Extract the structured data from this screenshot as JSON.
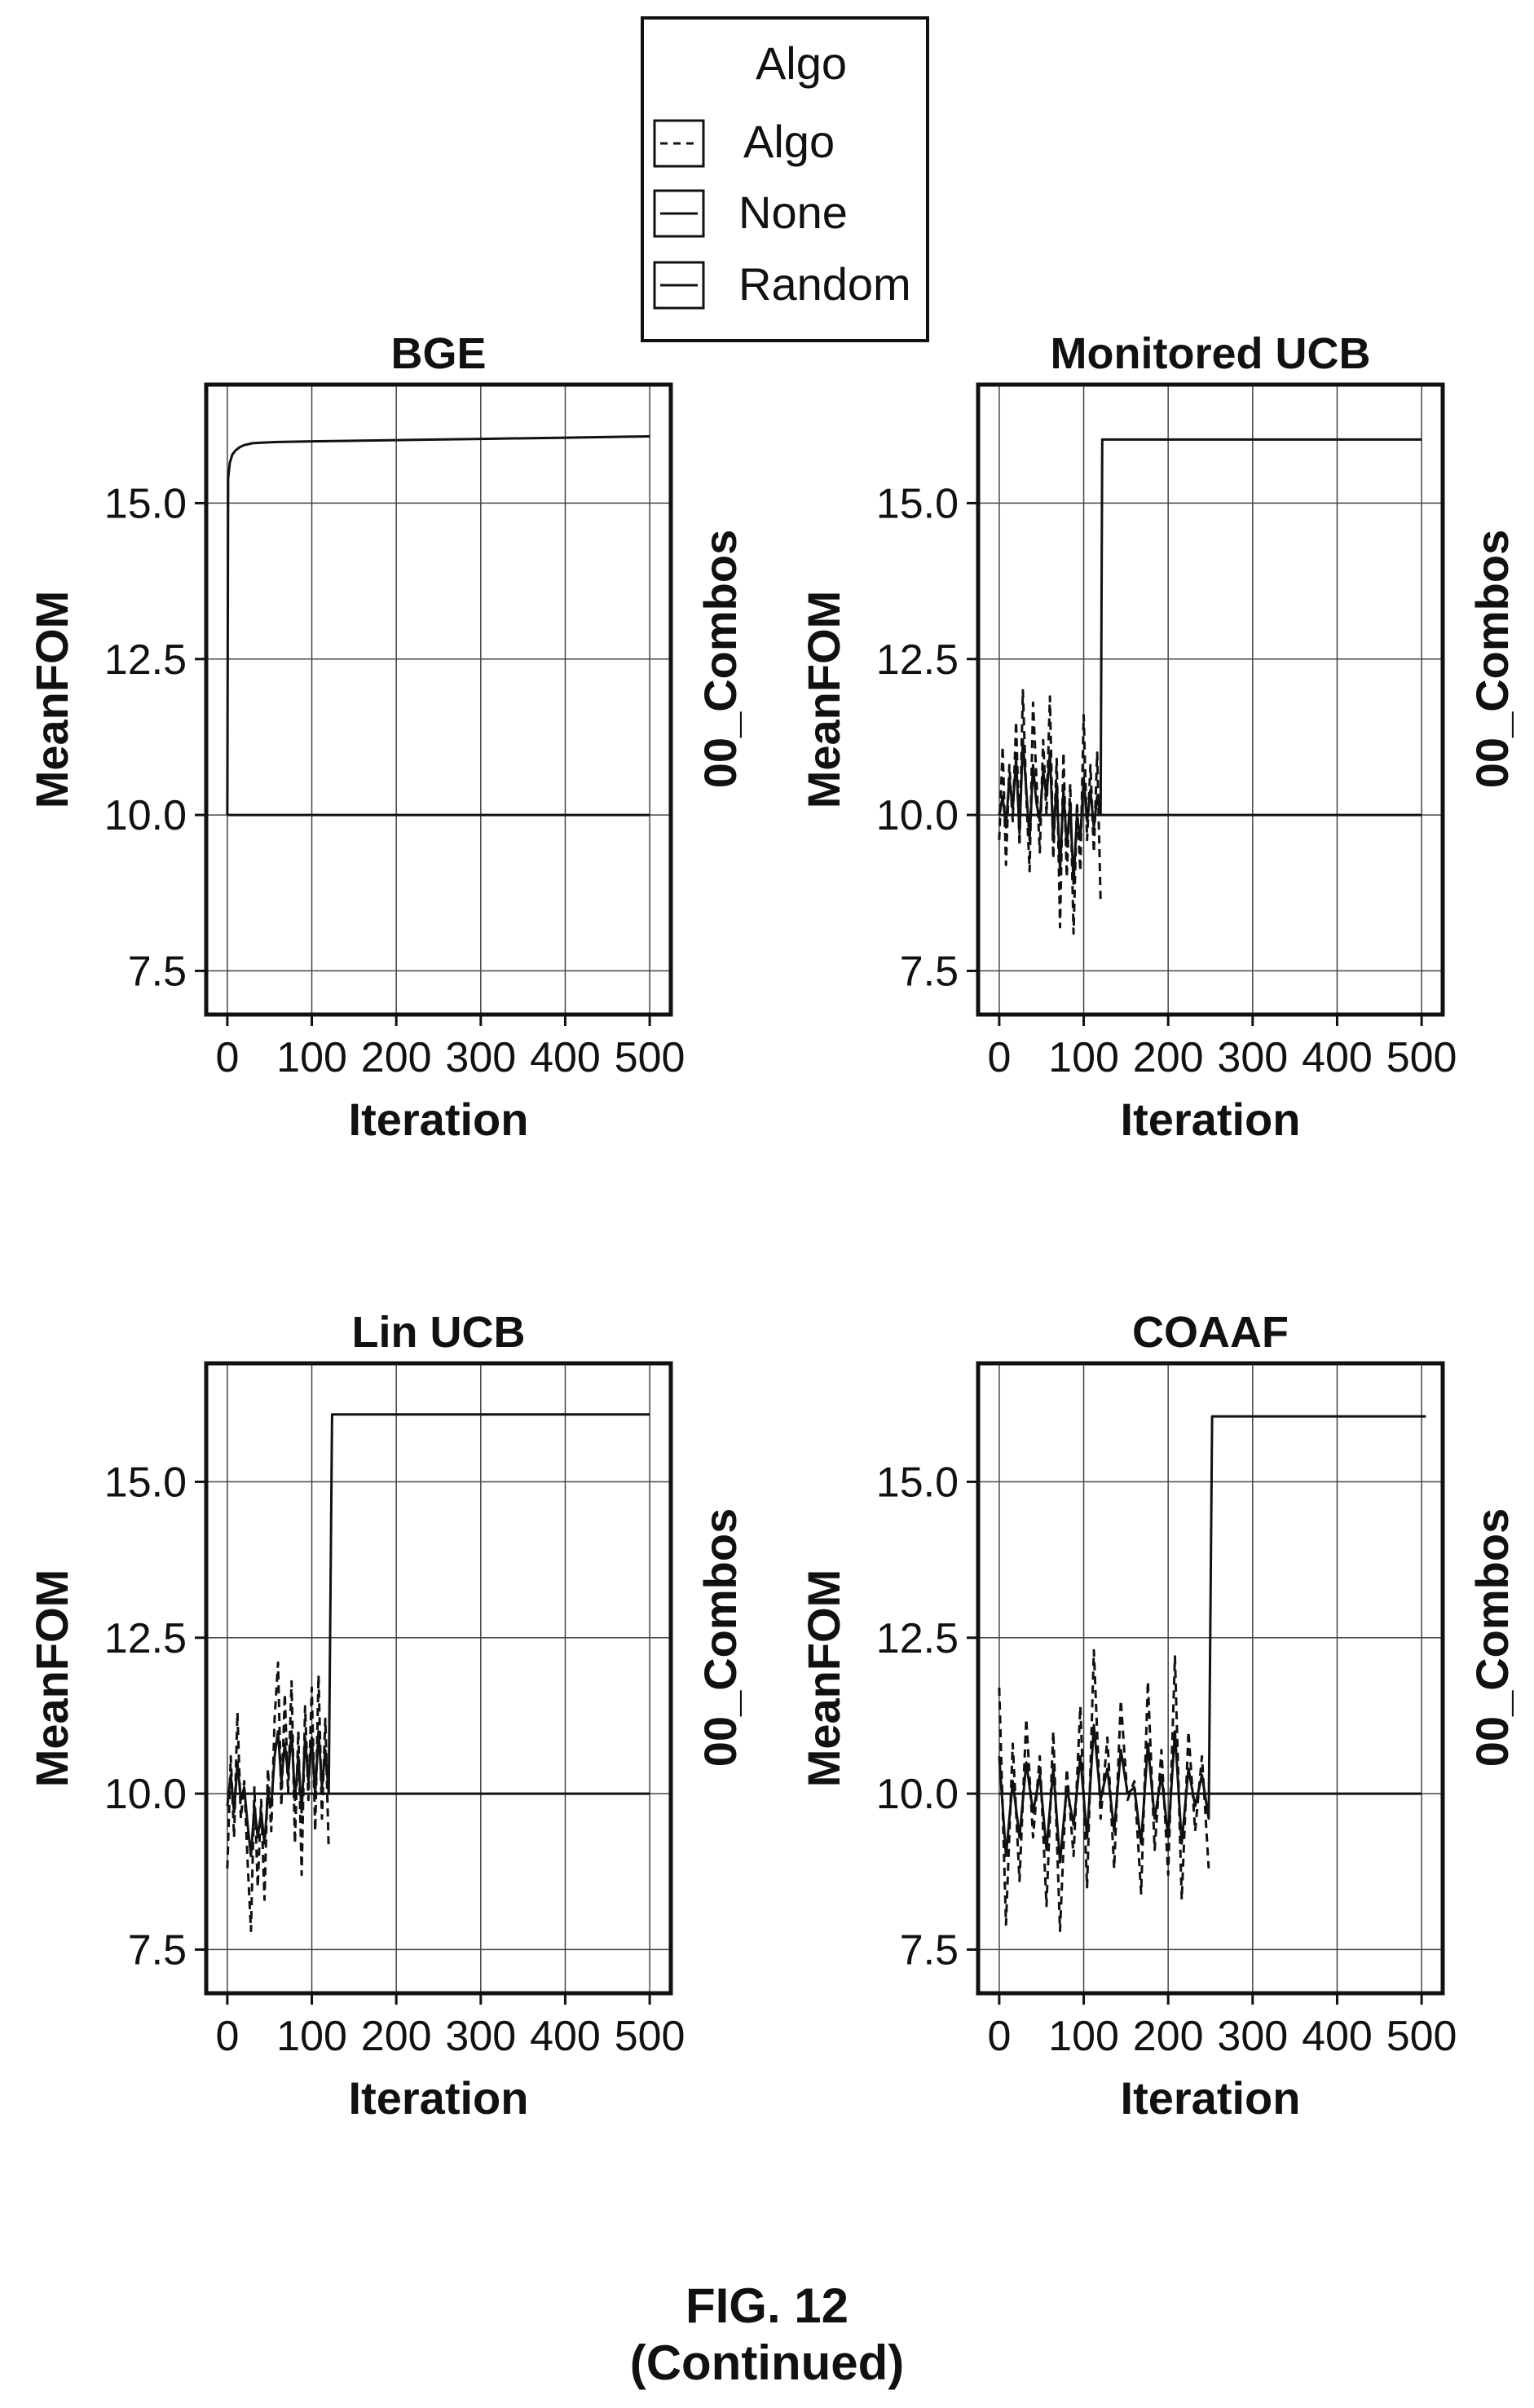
{
  "legend": {
    "title": "Algo",
    "entries": [
      {
        "label": "Algo",
        "style": "dashed"
      },
      {
        "label": "None",
        "style": "solid"
      },
      {
        "label": "Random",
        "style": "solid"
      }
    ]
  },
  "figure": {
    "caption": "FIG. 12",
    "subcaption": "(Continued)"
  },
  "chart_data": [
    {
      "type": "line",
      "title": "BGE",
      "xlabel": "Iteration",
      "ylabel": "MeanFOM",
      "y2label": "00_Combos",
      "xlim": [
        -25,
        525
      ],
      "ylim": [
        6.8,
        16.9
      ],
      "xticks": [
        0,
        100,
        200,
        300,
        400,
        500
      ],
      "xticklabels": [
        "0",
        "100",
        "200",
        "300",
        "400",
        "500"
      ],
      "yticks": [
        7.5,
        10.0,
        12.5,
        15.0
      ],
      "yticklabels": [
        "7.5",
        "10.0",
        "12.5",
        "15.0"
      ],
      "grid": true,
      "series": [
        {
          "name": "Algo",
          "style": "dashed",
          "x": [],
          "y": []
        },
        {
          "name": "None",
          "style": "solid",
          "x": [
            0,
            500
          ],
          "y": [
            10.0,
            10.0
          ]
        },
        {
          "name": "Random",
          "style": "solid",
          "x": [
            0,
            1,
            3,
            6,
            10,
            15,
            20,
            30,
            40,
            60,
            100,
            200,
            300,
            400,
            500
          ],
          "y": [
            10.0,
            15.4,
            15.65,
            15.78,
            15.85,
            15.9,
            15.93,
            15.96,
            15.97,
            15.98,
            15.99,
            16.01,
            16.03,
            16.05,
            16.07
          ]
        }
      ]
    },
    {
      "type": "line",
      "title": "Monitored UCB",
      "xlabel": "Iteration",
      "ylabel": "MeanFOM",
      "y2label": "00_Combos",
      "xlim": [
        -25,
        525
      ],
      "ylim": [
        6.8,
        16.9
      ],
      "xticks": [
        0,
        100,
        200,
        300,
        400,
        500
      ],
      "xticklabels": [
        "0",
        "100",
        "200",
        "300",
        "400",
        "500"
      ],
      "yticks": [
        7.5,
        10.0,
        12.5,
        15.0
      ],
      "yticklabels": [
        "7.5",
        "10.0",
        "12.5",
        "15.0"
      ],
      "grid": true,
      "series": [
        {
          "name": "Algo",
          "style": "dashed",
          "x": [
            0,
            4,
            8,
            12,
            16,
            20,
            24,
            28,
            32,
            36,
            40,
            44,
            48,
            52,
            56,
            60,
            64,
            68,
            72,
            76,
            80,
            84,
            88,
            92,
            96,
            100,
            104,
            108,
            112,
            116,
            120
          ],
          "y": [
            9.6,
            11.1,
            9.2,
            10.8,
            9.9,
            11.5,
            9.5,
            12.0,
            10.3,
            9.1,
            11.8,
            10.6,
            9.4,
            11.2,
            10.0,
            11.9,
            9.3,
            10.9,
            8.2,
            11.0,
            9.0,
            10.5,
            8.1,
            10.2,
            9.1,
            11.6,
            9.6,
            10.8,
            9.4,
            11.0,
            8.6
          ]
        },
        {
          "name": "None",
          "style": "solid",
          "x": [
            0,
            500
          ],
          "y": [
            10.0,
            10.0
          ]
        },
        {
          "name": "Random",
          "style": "solid",
          "x": [
            0,
            4,
            8,
            12,
            16,
            20,
            24,
            28,
            32,
            36,
            40,
            44,
            48,
            52,
            56,
            60,
            64,
            68,
            72,
            76,
            80,
            84,
            88,
            92,
            96,
            100,
            104,
            108,
            112,
            116,
            120,
            122,
            500
          ],
          "y": [
            10.0,
            10.3,
            9.8,
            10.6,
            10.1,
            10.9,
            9.7,
            11.2,
            10.4,
            9.6,
            10.8,
            10.2,
            9.9,
            10.7,
            10.3,
            11.0,
            9.6,
            10.5,
            9.1,
            10.4,
            9.5,
            10.2,
            8.9,
            10.0,
            9.6,
            10.6,
            9.9,
            10.4,
            9.8,
            10.3,
            10.0,
            16.02,
            16.02
          ]
        }
      ]
    },
    {
      "type": "line",
      "title": "Lin UCB",
      "xlabel": "Iteration",
      "ylabel": "MeanFOM",
      "y2label": "00_Combos",
      "xlim": [
        -25,
        525
      ],
      "ylim": [
        6.8,
        16.9
      ],
      "xticks": [
        0,
        100,
        200,
        300,
        400,
        500
      ],
      "xticklabels": [
        "0",
        "100",
        "200",
        "300",
        "400",
        "500"
      ],
      "yticks": [
        7.5,
        10.0,
        12.5,
        15.0
      ],
      "yticklabels": [
        "7.5",
        "10.0",
        "12.5",
        "15.0"
      ],
      "grid": true,
      "series": [
        {
          "name": "Algo",
          "style": "dashed",
          "x": [
            0,
            4,
            8,
            12,
            16,
            20,
            24,
            28,
            32,
            36,
            40,
            44,
            48,
            52,
            56,
            60,
            64,
            68,
            72,
            76,
            80,
            84,
            88,
            92,
            96,
            100,
            104,
            108,
            112,
            116,
            120
          ],
          "y": [
            8.8,
            10.6,
            9.3,
            11.3,
            9.6,
            10.2,
            8.9,
            7.8,
            10.1,
            8.5,
            9.9,
            8.3,
            10.4,
            9.4,
            11.2,
            12.1,
            9.8,
            11.6,
            10.0,
            11.8,
            9.2,
            11.0,
            8.7,
            11.4,
            9.9,
            11.7,
            9.4,
            11.9,
            9.6,
            11.2,
            9.1
          ]
        },
        {
          "name": "None",
          "style": "solid",
          "x": [
            0,
            500
          ],
          "y": [
            10.0,
            10.0
          ]
        },
        {
          "name": "Random",
          "style": "solid",
          "x": [
            0,
            4,
            8,
            12,
            16,
            20,
            24,
            28,
            32,
            36,
            40,
            44,
            48,
            52,
            56,
            60,
            64,
            68,
            72,
            76,
            80,
            84,
            88,
            92,
            96,
            100,
            104,
            108,
            112,
            116,
            120,
            124,
            500
          ],
          "y": [
            9.8,
            10.3,
            9.7,
            10.5,
            9.9,
            10.1,
            9.5,
            9.0,
            9.8,
            9.3,
            9.7,
            9.2,
            10.0,
            9.8,
            10.6,
            11.0,
            10.2,
            10.8,
            10.3,
            11.0,
            9.9,
            10.6,
            9.7,
            10.9,
            10.2,
            10.9,
            10.0,
            11.0,
            10.1,
            10.7,
            10.0,
            16.08,
            16.08
          ]
        }
      ]
    },
    {
      "type": "line",
      "title": "COAAF",
      "xlabel": "Iteration",
      "ylabel": "MeanFOM",
      "y2label": "00_Combos",
      "xlim": [
        -25,
        525
      ],
      "ylim": [
        6.8,
        16.9
      ],
      "xticks": [
        0,
        100,
        200,
        300,
        400,
        500
      ],
      "xticklabels": [
        "0",
        "100",
        "200",
        "300",
        "400",
        "500"
      ],
      "yticks": [
        7.5,
        10.0,
        12.5,
        15.0
      ],
      "yticklabels": [
        "7.5",
        "10.0",
        "12.5",
        "15.0"
      ],
      "grid": true,
      "series": [
        {
          "name": "Algo",
          "style": "dashed",
          "x": [
            0,
            8,
            16,
            24,
            32,
            40,
            48,
            56,
            64,
            72,
            80,
            88,
            96,
            104,
            112,
            120,
            128,
            136,
            144,
            152,
            160,
            168,
            176,
            184,
            192,
            200,
            208,
            216,
            224,
            232,
            240,
            248
          ],
          "y": [
            11.7,
            7.9,
            10.8,
            8.6,
            11.2,
            9.3,
            10.6,
            8.2,
            11.0,
            7.8,
            10.4,
            9.0,
            11.4,
            8.5,
            12.3,
            9.6,
            10.9,
            8.8,
            11.5,
            9.9,
            10.2,
            8.4,
            11.8,
            9.1,
            10.7,
            8.7,
            12.2,
            8.3,
            11.0,
            9.4,
            10.6,
            8.8
          ]
        },
        {
          "name": "None",
          "style": "solid",
          "x": [
            0,
            500
          ],
          "y": [
            10.0,
            10.0
          ]
        },
        {
          "name": "Random",
          "style": "solid",
          "x": [
            0,
            8,
            16,
            24,
            32,
            40,
            48,
            56,
            64,
            72,
            80,
            88,
            96,
            104,
            112,
            120,
            128,
            136,
            144,
            152,
            160,
            168,
            176,
            184,
            192,
            200,
            208,
            216,
            224,
            232,
            240,
            248,
            252,
            505
          ],
          "y": [
            10.6,
            9.0,
            10.2,
            9.3,
            10.5,
            9.7,
            10.3,
            9.1,
            10.4,
            8.9,
            10.1,
            9.5,
            10.6,
            9.3,
            11.1,
            9.9,
            10.4,
            9.4,
            10.7,
            10.0,
            10.1,
            9.2,
            10.8,
            9.6,
            10.3,
            9.3,
            11.0,
            9.2,
            10.4,
            9.8,
            10.3,
            9.6,
            16.05,
            16.05
          ]
        }
      ]
    }
  ]
}
